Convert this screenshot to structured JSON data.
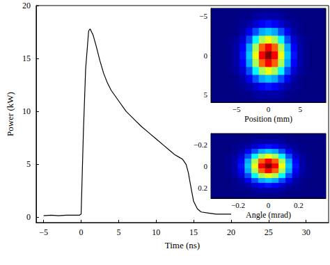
{
  "chart_data": [
    {
      "type": "line",
      "x_label": "Time (ns)",
      "y_label": "Power (kW)",
      "color": "#000000",
      "x": [
        -5,
        -4,
        -3,
        -2,
        -1,
        -0.2,
        0,
        0.3,
        0.6,
        1,
        1.2,
        1.6,
        2,
        2.5,
        3,
        3.5,
        4,
        5,
        6,
        7,
        8,
        9,
        10,
        11,
        12,
        12.5,
        13,
        13.5,
        14,
        14.3,
        14.6,
        15,
        15.5,
        16,
        17,
        18,
        19,
        20
      ],
      "values": [
        0.15,
        0.2,
        0.15,
        0.2,
        0.2,
        0.2,
        0.3,
        8,
        14,
        17.6,
        17.8,
        17.2,
        16.2,
        14.8,
        13.6,
        12.7,
        12,
        11,
        10,
        9.3,
        8.6,
        8,
        7.4,
        6.8,
        6.2,
        5.9,
        5.7,
        5.5,
        5,
        4.2,
        3,
        1.5,
        0.8,
        0.5,
        0.4,
        0.3,
        0.3,
        0.3
      ],
      "xlim": [
        -6,
        33
      ],
      "xticks": [
        {
          "value": -5,
          "label": "−5"
        },
        0,
        5,
        10,
        15,
        20,
        25,
        30
      ],
      "ylim": [
        -0.5,
        20
      ],
      "yticks": [
        0,
        5,
        10,
        15,
        20
      ]
    },
    {
      "type": "heatmap",
      "x_label": "Position (mm)",
      "x": [
        -8,
        -7,
        -6,
        -5,
        -4,
        -3,
        -2,
        -1,
        0,
        1,
        2,
        3,
        4,
        5,
        6,
        7,
        8
      ],
      "y": [
        -6,
        -5,
        -4,
        -3,
        -2,
        -1,
        0,
        1,
        2,
        3,
        4,
        5,
        6
      ],
      "z": [
        [
          0,
          0,
          0,
          0,
          0,
          0,
          0.01,
          0.01,
          0.01,
          0.01,
          0.01,
          0,
          0,
          0,
          0,
          0,
          0
        ],
        [
          0,
          0,
          0,
          0,
          0.01,
          0.01,
          0.03,
          0.04,
          0.04,
          0.04,
          0.03,
          0.01,
          0.01,
          0,
          0,
          0,
          0
        ],
        [
          0,
          0,
          0,
          0.01,
          0.02,
          0.04,
          0.08,
          0.12,
          0.14,
          0.12,
          0.08,
          0.04,
          0.02,
          0.01,
          0,
          0,
          0
        ],
        [
          0,
          0,
          0,
          0.01,
          0.04,
          0.11,
          0.2,
          0.29,
          0.32,
          0.29,
          0.2,
          0.11,
          0.04,
          0.01,
          0,
          0,
          0
        ],
        [
          0,
          0,
          0.01,
          0.03,
          0.08,
          0.2,
          0.37,
          0.54,
          0.61,
          0.54,
          0.37,
          0.2,
          0.08,
          0.03,
          0.01,
          0,
          0
        ],
        [
          0,
          0,
          0.01,
          0.04,
          0.12,
          0.29,
          0.54,
          0.78,
          0.88,
          0.78,
          0.54,
          0.29,
          0.12,
          0.04,
          0.01,
          0,
          0
        ],
        [
          0,
          0,
          0.01,
          0.04,
          0.14,
          0.32,
          0.61,
          0.88,
          1,
          0.88,
          0.61,
          0.32,
          0.14,
          0.04,
          0.01,
          0,
          0
        ],
        [
          0,
          0,
          0.01,
          0.04,
          0.12,
          0.29,
          0.54,
          0.78,
          0.88,
          0.78,
          0.54,
          0.29,
          0.12,
          0.04,
          0.01,
          0,
          0
        ],
        [
          0,
          0,
          0.01,
          0.03,
          0.08,
          0.2,
          0.37,
          0.54,
          0.61,
          0.54,
          0.37,
          0.2,
          0.08,
          0.03,
          0.01,
          0,
          0
        ],
        [
          0,
          0,
          0,
          0.01,
          0.04,
          0.11,
          0.2,
          0.29,
          0.32,
          0.29,
          0.2,
          0.11,
          0.04,
          0.01,
          0,
          0,
          0
        ],
        [
          0,
          0,
          0,
          0.01,
          0.02,
          0.04,
          0.08,
          0.12,
          0.14,
          0.12,
          0.08,
          0.04,
          0.02,
          0.01,
          0,
          0,
          0
        ],
        [
          0,
          0,
          0,
          0,
          0.01,
          0.01,
          0.03,
          0.04,
          0.04,
          0.04,
          0.03,
          0.01,
          0.01,
          0,
          0,
          0,
          0
        ],
        [
          0,
          0,
          0,
          0,
          0,
          0,
          0.01,
          0.01,
          0.01,
          0.01,
          0.01,
          0,
          0,
          0,
          0,
          0,
          0
        ]
      ],
      "zlim": [
        0,
        1
      ],
      "xlim": [
        -9,
        9
      ],
      "xticks": [
        {
          "value": -5,
          "label": "−5"
        },
        0,
        5
      ],
      "ylim": [
        6,
        -6
      ],
      "yticks": [
        {
          "value": -5,
          "label": "−5"
        },
        0,
        5
      ]
    },
    {
      "type": "heatmap",
      "x_label": "Angle (mrad)",
      "x": [
        -0.36,
        -0.315,
        -0.27,
        -0.225,
        -0.18,
        -0.135,
        -0.09,
        -0.045,
        0,
        0.045,
        0.09,
        0.135,
        0.18,
        0.225,
        0.27,
        0.315,
        0.36
      ],
      "y": [
        -0.27,
        -0.225,
        -0.18,
        -0.135,
        -0.09,
        -0.045,
        0,
        0.045,
        0.09,
        0.135,
        0.18,
        0.225,
        0.27
      ],
      "z": [
        [
          0,
          0,
          0,
          0,
          0,
          0,
          0.01,
          0.01,
          0.01,
          0.01,
          0.01,
          0,
          0,
          0,
          0,
          0,
          0
        ],
        [
          0,
          0,
          0,
          0,
          0.01,
          0.01,
          0.03,
          0.04,
          0.04,
          0.04,
          0.03,
          0.01,
          0.01,
          0,
          0,
          0,
          0
        ],
        [
          0,
          0,
          0,
          0.01,
          0.02,
          0.04,
          0.08,
          0.12,
          0.14,
          0.12,
          0.08,
          0.04,
          0.02,
          0.01,
          0,
          0,
          0
        ],
        [
          0,
          0,
          0,
          0.01,
          0.04,
          0.11,
          0.2,
          0.29,
          0.32,
          0.29,
          0.2,
          0.11,
          0.04,
          0.01,
          0,
          0,
          0
        ],
        [
          0,
          0,
          0.01,
          0.03,
          0.08,
          0.2,
          0.37,
          0.54,
          0.61,
          0.54,
          0.37,
          0.2,
          0.08,
          0.03,
          0.01,
          0,
          0
        ],
        [
          0,
          0,
          0.01,
          0.04,
          0.12,
          0.29,
          0.54,
          0.78,
          0.88,
          0.78,
          0.54,
          0.29,
          0.12,
          0.04,
          0.01,
          0,
          0
        ],
        [
          0,
          0,
          0.01,
          0.04,
          0.14,
          0.32,
          0.61,
          0.88,
          1,
          0.88,
          0.61,
          0.32,
          0.14,
          0.04,
          0.01,
          0,
          0
        ],
        [
          0,
          0,
          0.01,
          0.04,
          0.12,
          0.29,
          0.54,
          0.78,
          0.88,
          0.78,
          0.54,
          0.29,
          0.12,
          0.04,
          0.01,
          0,
          0
        ],
        [
          0,
          0,
          0.01,
          0.03,
          0.08,
          0.2,
          0.37,
          0.54,
          0.61,
          0.54,
          0.37,
          0.2,
          0.08,
          0.03,
          0.01,
          0,
          0
        ],
        [
          0,
          0,
          0,
          0.01,
          0.04,
          0.11,
          0.2,
          0.29,
          0.32,
          0.29,
          0.2,
          0.11,
          0.04,
          0.01,
          0,
          0,
          0
        ],
        [
          0,
          0,
          0,
          0.01,
          0.02,
          0.04,
          0.08,
          0.12,
          0.14,
          0.12,
          0.08,
          0.04,
          0.02,
          0.01,
          0,
          0,
          0
        ],
        [
          0,
          0,
          0,
          0,
          0.01,
          0.01,
          0.03,
          0.04,
          0.04,
          0.04,
          0.03,
          0.01,
          0.01,
          0,
          0,
          0,
          0
        ],
        [
          0,
          0,
          0,
          0,
          0,
          0,
          0.01,
          0.01,
          0.01,
          0.01,
          0.01,
          0,
          0,
          0,
          0,
          0,
          0
        ]
      ],
      "zlim": [
        0,
        1
      ],
      "xlim": [
        -0.38,
        0.38
      ],
      "xticks": [
        {
          "value": -0.2,
          "label": "−0.2"
        },
        0,
        0.2
      ],
      "ylim": [
        0.3,
        -0.3
      ],
      "yticks": [
        {
          "value": -0.2,
          "label": "−0.2"
        },
        0,
        0.2
      ]
    }
  ]
}
